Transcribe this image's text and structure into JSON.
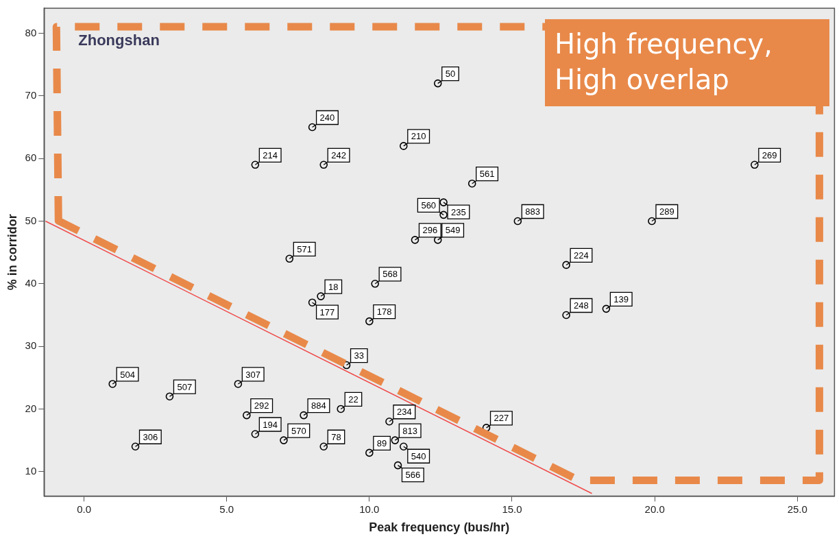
{
  "chart_data": {
    "type": "scatter",
    "title": "Zhongshan",
    "xlabel": "Peak frequency (bus/hr)",
    "ylabel": "% in corridor",
    "xlim": [
      -1.4,
      26.3
    ],
    "ylim": [
      6.1,
      84
    ],
    "xticks": [
      {
        "value": 0,
        "label": "0.0"
      },
      {
        "value": 5,
        "label": "5.0"
      },
      {
        "value": 10,
        "label": "10.0"
      },
      {
        "value": 15,
        "label": "15.0"
      },
      {
        "value": 20,
        "label": "20.0"
      },
      {
        "value": 25,
        "label": "25.0"
      }
    ],
    "yticks": [
      10,
      20,
      30,
      40,
      50,
      60,
      70,
      80
    ],
    "grid": false,
    "legend": false,
    "series": [
      {
        "type": "scatter",
        "marker": "circle",
        "color": "#000000",
        "x": [
          1.0,
          3.0,
          1.8,
          5.4,
          5.7,
          6.0,
          7.0,
          7.7,
          8.4,
          9.0,
          10.0,
          10.7,
          10.9,
          11.2,
          11.0,
          9.2,
          8.0,
          8.3,
          10.0,
          10.2,
          7.2,
          11.6,
          6.0,
          8.4,
          8.0,
          11.2,
          12.4,
          12.6,
          12.6,
          12.4,
          13.6,
          15.2,
          19.9,
          16.9,
          23.5,
          18.3,
          16.9,
          14.1
        ],
        "values": [
          24,
          22,
          14,
          24,
          19,
          16,
          15,
          19,
          14,
          20,
          13,
          18,
          15,
          14,
          11,
          27,
          37,
          38,
          34,
          40,
          44,
          47,
          59,
          59,
          65,
          62,
          72,
          53,
          51,
          47,
          56,
          50,
          50,
          43,
          59,
          36,
          35,
          17
        ]
      },
      {
        "type": "line",
        "color": "#f04a4a",
        "x": [
          -1.35,
          17.8
        ],
        "values": [
          50,
          6.5
        ]
      }
    ],
    "annotations": [
      "High frequency,\nHigh overlap",
      {
        "text": "504",
        "x": 1.0,
        "y": 24
      },
      {
        "text": "507",
        "x": 3.0,
        "y": 22
      },
      {
        "text": "306",
        "x": 1.8,
        "y": 14
      },
      {
        "text": "307",
        "x": 5.4,
        "y": 24
      },
      {
        "text": "292",
        "x": 5.7,
        "y": 19
      },
      {
        "text": "194",
        "x": 6.0,
        "y": 16
      },
      {
        "text": "570",
        "x": 7.0,
        "y": 15
      },
      {
        "text": "884",
        "x": 7.7,
        "y": 19
      },
      {
        "text": "78",
        "x": 8.4,
        "y": 14
      },
      {
        "text": "22",
        "x": 9.0,
        "y": 20
      },
      {
        "text": "89",
        "x": 10.0,
        "y": 13
      },
      {
        "text": "234",
        "x": 10.7,
        "y": 18
      },
      {
        "text": "813",
        "x": 10.9,
        "y": 15
      },
      {
        "text": "540",
        "x": 11.2,
        "y": 14
      },
      {
        "text": "566",
        "x": 11.0,
        "y": 11
      },
      {
        "text": "33",
        "x": 9.2,
        "y": 27
      },
      {
        "text": "177",
        "x": 8.0,
        "y": 37
      },
      {
        "text": "18",
        "x": 8.3,
        "y": 38
      },
      {
        "text": "178",
        "x": 10.0,
        "y": 34
      },
      {
        "text": "568",
        "x": 10.2,
        "y": 40
      },
      {
        "text": "571",
        "x": 7.2,
        "y": 44
      },
      {
        "text": "296",
        "x": 11.6,
        "y": 47
      },
      {
        "text": "214",
        "x": 6.0,
        "y": 59
      },
      {
        "text": "242",
        "x": 8.4,
        "y": 59
      },
      {
        "text": "240",
        "x": 8.0,
        "y": 65
      },
      {
        "text": "210",
        "x": 11.2,
        "y": 62
      },
      {
        "text": "50",
        "x": 12.4,
        "y": 72
      },
      {
        "text": "235",
        "x": 12.6,
        "y": 53
      },
      {
        "text": "560",
        "x": 12.6,
        "y": 51
      },
      {
        "text": "549",
        "x": 12.4,
        "y": 47
      },
      {
        "text": "561",
        "x": 13.6,
        "y": 56
      },
      {
        "text": "883",
        "x": 15.2,
        "y": 50
      },
      {
        "text": "289",
        "x": 19.9,
        "y": 50
      },
      {
        "text": "224",
        "x": 16.9,
        "y": 43
      },
      {
        "text": "269",
        "x": 23.5,
        "y": 59
      },
      {
        "text": "139",
        "x": 18.3,
        "y": 36
      },
      {
        "text": "248",
        "x": 16.9,
        "y": 35
      },
      {
        "text": "227",
        "x": 14.1,
        "y": 17
      }
    ]
  }
}
